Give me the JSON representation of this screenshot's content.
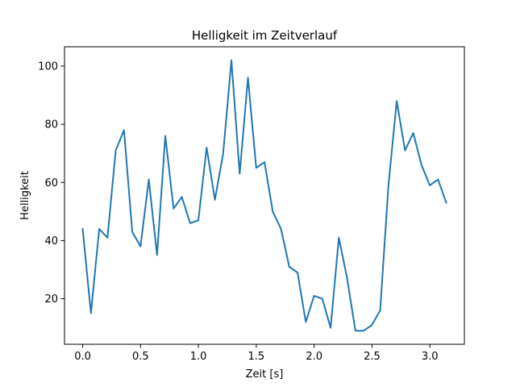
{
  "chart_data": {
    "type": "line",
    "title": "Helligkeit im Zeitverlauf",
    "xlabel": "Zeit [s]",
    "ylabel": "Helligkeit",
    "xlim": [
      -0.157,
      3.298
    ],
    "ylim": [
      4.35,
      106.65
    ],
    "xticks": [
      0.0,
      0.5,
      1.0,
      1.5,
      2.0,
      2.5,
      3.0
    ],
    "xtick_labels": [
      "0.0",
      "0.5",
      "1.0",
      "1.5",
      "2.0",
      "2.5",
      "3.0"
    ],
    "yticks": [
      20,
      40,
      60,
      80,
      100
    ],
    "ytick_labels": [
      "20",
      "40",
      "60",
      "80",
      "100"
    ],
    "grid": false,
    "series": [
      {
        "name": "Helligkeit",
        "color": "#1f77b4",
        "x": [
          0.0,
          0.0714,
          0.1428,
          0.2142,
          0.2856,
          0.357,
          0.4284,
          0.4998,
          0.5712,
          0.6426,
          0.714,
          0.7854,
          0.8568,
          0.9282,
          0.9996,
          1.071,
          1.1424,
          1.2138,
          1.2852,
          1.3566,
          1.428,
          1.4994,
          1.5708,
          1.6422,
          1.7136,
          1.785,
          1.8564,
          1.9278,
          1.9992,
          2.0706,
          2.142,
          2.2134,
          2.2848,
          2.3562,
          2.4276,
          2.499,
          2.5704,
          2.6418,
          2.7132,
          2.7846,
          2.856,
          2.9274,
          2.9988,
          3.0702,
          3.1416
        ],
        "y": [
          44,
          15,
          44,
          41,
          71,
          78,
          43,
          38,
          61,
          35,
          76,
          51,
          55,
          46,
          47,
          72,
          54,
          70,
          102,
          63,
          96,
          65,
          67,
          50,
          44,
          31,
          29,
          12,
          21,
          20,
          10,
          41,
          27,
          9,
          9,
          11,
          16,
          59,
          88,
          71,
          77,
          66,
          59,
          61,
          53
        ]
      }
    ]
  }
}
